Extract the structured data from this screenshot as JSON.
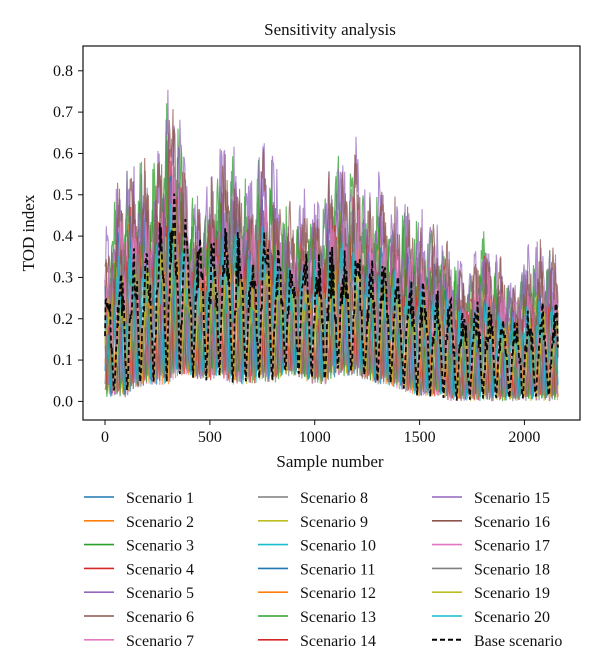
{
  "chart_data": {
    "type": "line",
    "title": "Sensitivity analysis",
    "xlabel": "Sample number",
    "ylabel": "TOD index",
    "xlim": [
      -105,
      2265
    ],
    "ylim": [
      -0.045,
      0.86
    ],
    "xticks": [
      0,
      500,
      1000,
      1500,
      2000
    ],
    "yticks": [
      0.0,
      0.1,
      0.2,
      0.3,
      0.4,
      0.5,
      0.6,
      0.7,
      0.8
    ],
    "ytick_labels": [
      "0.0",
      "0.1",
      "0.2",
      "0.3",
      "0.4",
      "0.5",
      "0.6",
      "0.7",
      "0.8"
    ],
    "grid": false,
    "legend_position": "below plot, 3 columns",
    "n_samples": 2160,
    "series": [
      {
        "name": "Scenario 1",
        "color": "#1f77b4",
        "style": "solid"
      },
      {
        "name": "Scenario 2",
        "color": "#ff7f0e",
        "style": "solid"
      },
      {
        "name": "Scenario 3",
        "color": "#2ca02c",
        "style": "solid"
      },
      {
        "name": "Scenario 4",
        "color": "#d62728",
        "style": "solid"
      },
      {
        "name": "Scenario 5",
        "color": "#9467bd",
        "style": "solid"
      },
      {
        "name": "Scenario 6",
        "color": "#8c564b",
        "style": "solid"
      },
      {
        "name": "Scenario 7",
        "color": "#e377c2",
        "style": "solid"
      },
      {
        "name": "Scenario 8",
        "color": "#7f7f7f",
        "style": "solid"
      },
      {
        "name": "Scenario 9",
        "color": "#bcbd22",
        "style": "solid"
      },
      {
        "name": "Scenario 10",
        "color": "#17becf",
        "style": "solid"
      },
      {
        "name": "Scenario 11",
        "color": "#1f77b4",
        "style": "solid"
      },
      {
        "name": "Scenario 12",
        "color": "#ff7f0e",
        "style": "solid"
      },
      {
        "name": "Scenario 13",
        "color": "#2ca02c",
        "style": "solid"
      },
      {
        "name": "Scenario 14",
        "color": "#d62728",
        "style": "solid"
      },
      {
        "name": "Scenario 15",
        "color": "#9467bd",
        "style": "solid"
      },
      {
        "name": "Scenario 16",
        "color": "#8c564b",
        "style": "solid"
      },
      {
        "name": "Scenario 17",
        "color": "#e377c2",
        "style": "solid"
      },
      {
        "name": "Scenario 18",
        "color": "#7f7f7f",
        "style": "solid"
      },
      {
        "name": "Scenario 19",
        "color": "#bcbd22",
        "style": "solid"
      },
      {
        "name": "Scenario 20",
        "color": "#17becf",
        "style": "solid"
      },
      {
        "name": "Base scenario",
        "color": "#000000",
        "style": "dashed"
      }
    ],
    "envelope": {
      "x": [
        0,
        50,
        100,
        150,
        200,
        250,
        300,
        350,
        400,
        450,
        500,
        550,
        600,
        650,
        700,
        750,
        800,
        850,
        900,
        950,
        1000,
        1050,
        1100,
        1150,
        1200,
        1250,
        1300,
        1350,
        1400,
        1450,
        1500,
        1550,
        1600,
        1650,
        1700,
        1750,
        1800,
        1850,
        1900,
        1950,
        2000,
        2050,
        2100,
        2150
      ],
      "max": [
        0.42,
        0.55,
        0.6,
        0.62,
        0.6,
        0.62,
        0.81,
        0.78,
        0.52,
        0.52,
        0.55,
        0.65,
        0.67,
        0.62,
        0.55,
        0.66,
        0.62,
        0.52,
        0.5,
        0.53,
        0.55,
        0.52,
        0.68,
        0.6,
        0.65,
        0.5,
        0.59,
        0.52,
        0.5,
        0.5,
        0.48,
        0.48,
        0.46,
        0.4,
        0.36,
        0.34,
        0.45,
        0.4,
        0.35,
        0.32,
        0.38,
        0.4,
        0.41,
        0.38
      ],
      "base_max": [
        0.27,
        0.32,
        0.35,
        0.4,
        0.41,
        0.42,
        0.55,
        0.56,
        0.44,
        0.42,
        0.4,
        0.45,
        0.48,
        0.42,
        0.4,
        0.44,
        0.42,
        0.38,
        0.36,
        0.38,
        0.38,
        0.36,
        0.4,
        0.38,
        0.4,
        0.34,
        0.38,
        0.34,
        0.32,
        0.3,
        0.3,
        0.3,
        0.28,
        0.26,
        0.24,
        0.24,
        0.26,
        0.24,
        0.22,
        0.22,
        0.24,
        0.24,
        0.24,
        0.24
      ],
      "min": [
        0.01,
        0.01,
        0.01,
        0.03,
        0.04,
        0.04,
        0.04,
        0.06,
        0.06,
        0.05,
        0.05,
        0.06,
        0.04,
        0.04,
        0.04,
        0.05,
        0.04,
        0.06,
        0.06,
        0.05,
        0.04,
        0.04,
        0.06,
        0.06,
        0.06,
        0.05,
        0.04,
        0.04,
        0.03,
        0.02,
        0.01,
        0.01,
        0.01,
        0.0,
        0.0,
        0.0,
        0.0,
        0.0,
        0.0,
        0.0,
        0.0,
        0.0,
        0.0,
        0.0
      ]
    }
  }
}
